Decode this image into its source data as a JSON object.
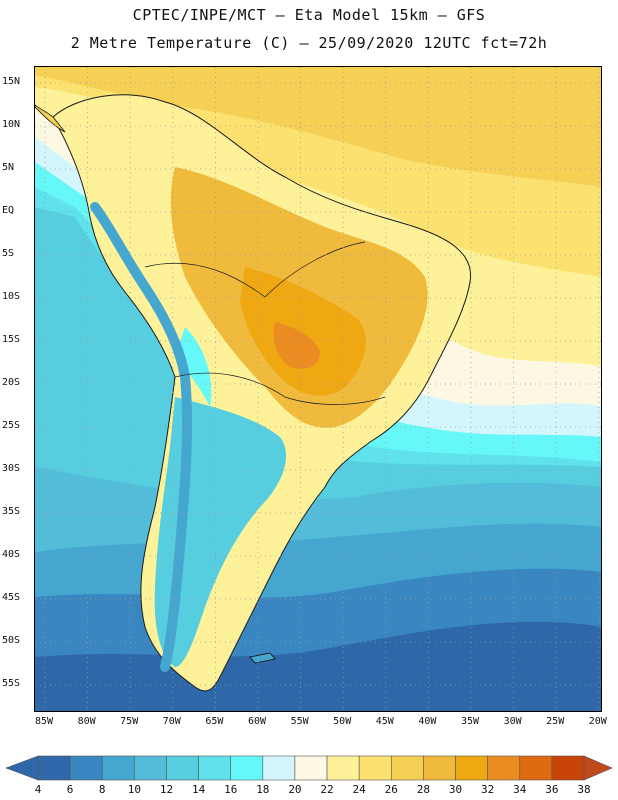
{
  "header": {
    "line1": "CPTEC/INPE/MCT –  Eta Model 15km – GFS",
    "line2": "2 Metre Temperature (C) – 25/09/2020 12UTC fct=72h"
  },
  "map": {
    "region": "South America",
    "latitude_labels": [
      "15N",
      "10N",
      "5N",
      "EQ",
      "5S",
      "10S",
      "15S",
      "20S",
      "25S",
      "30S",
      "35S",
      "40S",
      "45S",
      "50S",
      "55S"
    ],
    "longitude_labels": [
      "85W",
      "80W",
      "75W",
      "70W",
      "65W",
      "60W",
      "55W",
      "50W",
      "45W",
      "40W",
      "35W",
      "30W",
      "25W",
      "20W"
    ]
  },
  "colorbar": {
    "labels": [
      "4",
      "6",
      "8",
      "10",
      "12",
      "14",
      "16",
      "18",
      "20",
      "22",
      "24",
      "26",
      "28",
      "30",
      "32",
      "34",
      "36",
      "38"
    ],
    "colors": [
      "#2f68a8",
      "#3a86c0",
      "#45a6cf",
      "#52bcd9",
      "#57cee0",
      "#5fe2ec",
      "#66f8f8",
      "#d2f6fb",
      "#fdf8e3",
      "#fdf29a",
      "#fbe170",
      "#f6cf55",
      "#f0bb3c",
      "#efa712",
      "#eb8c22",
      "#df6a10",
      "#c84408"
    ],
    "under_color": "#2f68a8",
    "over_color": "#c04a1c"
  }
}
